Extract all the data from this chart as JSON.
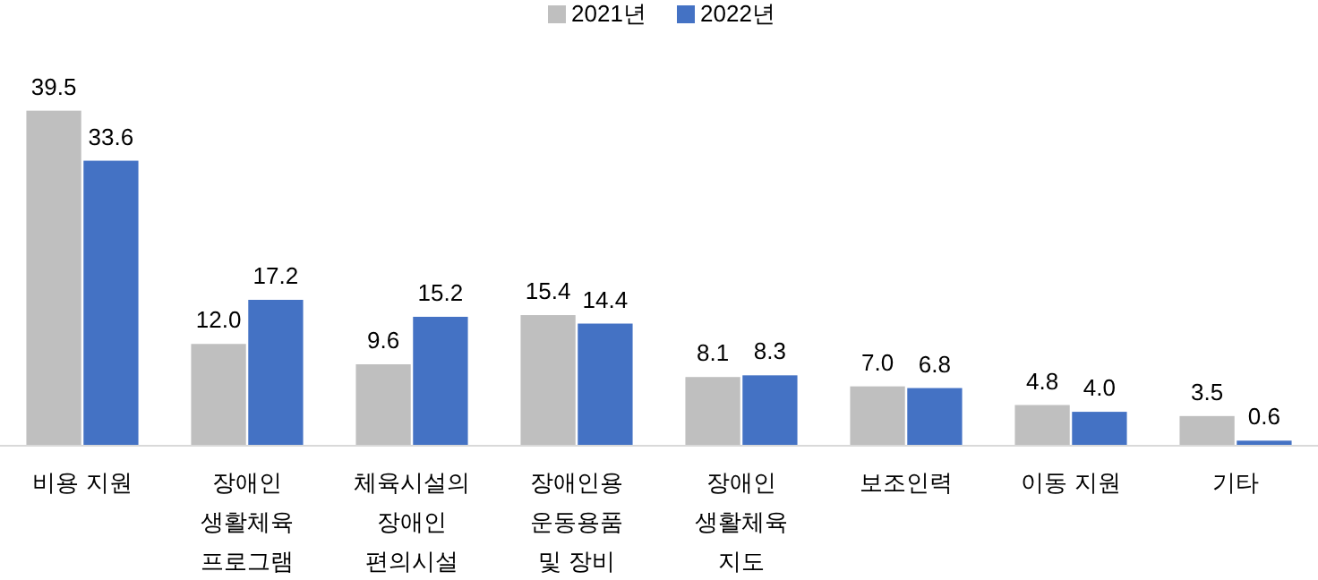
{
  "chart_data": {
    "type": "bar",
    "categories": [
      "비용 지원",
      "장애인\n생활체육\n프로그램",
      "체육시설의\n장애인\n편의시설",
      "장애인용\n운동용품\n및 장비",
      "장애인\n생활체육\n지도",
      "보조인력",
      "이동 지원",
      "기타"
    ],
    "series": [
      {
        "name": "2021년",
        "color": "#bfbfbf",
        "values": [
          39.5,
          12.0,
          9.6,
          15.4,
          8.1,
          7.0,
          4.8,
          3.5
        ],
        "value_labels": [
          "39.5",
          "12.0",
          "9.6",
          "15.4",
          "8.1",
          "7.0",
          "4.8",
          "3.5"
        ]
      },
      {
        "name": "2022년",
        "color": "#4472c4",
        "values": [
          33.6,
          17.2,
          15.2,
          14.4,
          8.3,
          6.8,
          4.0,
          0.6
        ],
        "value_labels": [
          "33.6",
          "17.2",
          "15.2",
          "14.4",
          "8.3",
          "6.8",
          "4.0",
          "0.6"
        ]
      }
    ],
    "legend": "top"
  }
}
